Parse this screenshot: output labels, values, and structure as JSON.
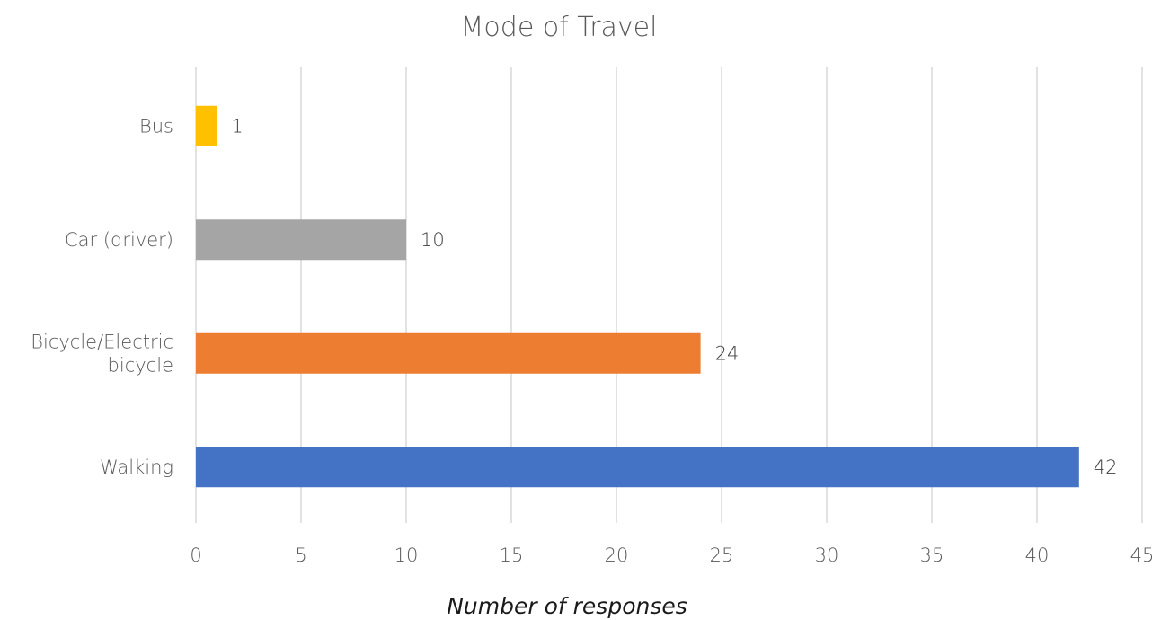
{
  "chart_data": {
    "type": "bar",
    "orientation": "horizontal",
    "title": "Mode of Travel",
    "xlabel": "Number of responses",
    "ylabel": "",
    "xlim": [
      0,
      45
    ],
    "x_ticks": [
      "0",
      "5",
      "10",
      "15",
      "20",
      "25",
      "30",
      "35",
      "40",
      "45"
    ],
    "grid": true,
    "legend": "none",
    "categories": [
      {
        "label": "Bus",
        "lines": [
          "Bus"
        ],
        "value": 1,
        "color": "#FFC000"
      },
      {
        "label": "Car (driver)",
        "lines": [
          "Car (driver)"
        ],
        "value": 10,
        "color": "#A5A5A5"
      },
      {
        "label": "Bicycle/Electric bicycle",
        "lines": [
          "Bicycle/Electric",
          "bicycle"
        ],
        "value": 24,
        "color": "#ED7D31"
      },
      {
        "label": "Walking",
        "lines": [
          "Walking"
        ],
        "value": 42,
        "color": "#4472C4"
      }
    ]
  }
}
